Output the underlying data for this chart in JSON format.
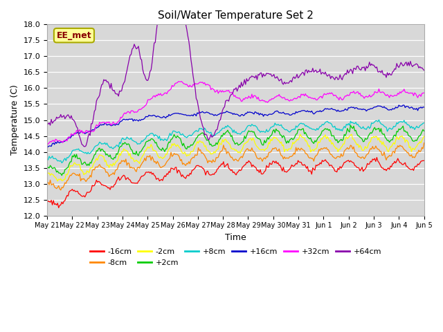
{
  "title": "Soil/Water Temperature Set 2",
  "xlabel": "Time",
  "ylabel": "Temperature (C)",
  "ylim": [
    12.0,
    18.0
  ],
  "yticks": [
    12.0,
    12.5,
    13.0,
    13.5,
    14.0,
    14.5,
    15.0,
    15.5,
    16.0,
    16.5,
    17.0,
    17.5,
    18.0
  ],
  "x_labels": [
    "May 21",
    "May 22",
    "May 23",
    "May 24",
    "May 25",
    "May 26",
    "May 27",
    "May 28",
    "May 29",
    "May 30",
    "May 31",
    "Jun 1",
    "Jun 2",
    "Jun 3",
    "Jun 4",
    "Jun 5"
  ],
  "annotation": "EE_met",
  "bg_color": "#d8d8d8",
  "series": {
    "-16cm": {
      "color": "#ff0000"
    },
    "-8cm": {
      "color": "#ff8800"
    },
    "-2cm": {
      "color": "#ffff00"
    },
    "+2cm": {
      "color": "#00cc00"
    },
    "+8cm": {
      "color": "#00cccc"
    },
    "+16cm": {
      "color": "#0000cc"
    },
    "+32cm": {
      "color": "#ff00ff"
    },
    "+64cm": {
      "color": "#8800aa"
    }
  },
  "legend_order": [
    "-16cm",
    "-8cm",
    "-2cm",
    "+2cm",
    "+8cm",
    "+16cm",
    "+32cm",
    "+64cm"
  ],
  "n_points": 360
}
